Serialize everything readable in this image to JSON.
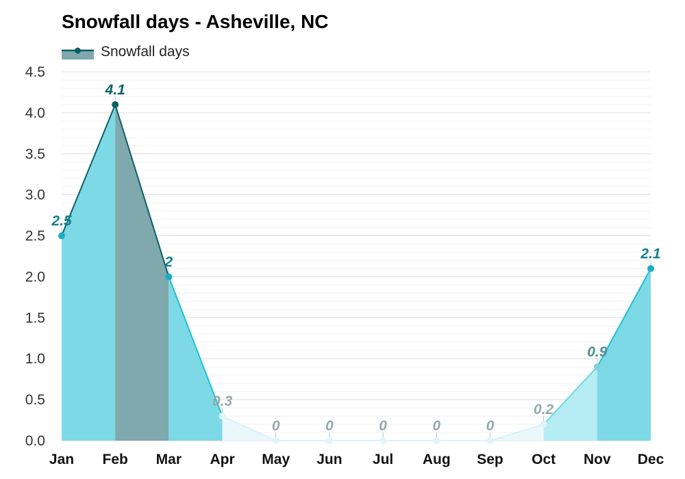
{
  "chart_data": {
    "type": "area",
    "title": "Snowfall days - Asheville, NC",
    "categories": [
      "Jan",
      "Feb",
      "Mar",
      "Apr",
      "May",
      "Jun",
      "Jul",
      "Aug",
      "Sep",
      "Oct",
      "Nov",
      "Dec"
    ],
    "series": [
      {
        "name": "Snowfall days",
        "values": [
          2.5,
          4.1,
          2,
          0.3,
          0,
          0,
          0,
          0,
          0,
          0.2,
          0.9,
          2.1
        ]
      }
    ],
    "data_labels": [
      "2.5",
      "4.1",
      "2",
      "0.3",
      "0",
      "0",
      "0",
      "0",
      "0",
      "0.2",
      "0.9",
      "2.1"
    ],
    "y_ticks": [
      "0.0",
      "0.5",
      "1.0",
      "1.5",
      "2.0",
      "2.5",
      "3.0",
      "3.5",
      "4.0",
      "4.5"
    ],
    "ylim": [
      0,
      4.5
    ],
    "xlabel": "",
    "ylabel": "",
    "grid": true,
    "legend_position": "top-left",
    "colors": {
      "legend_fill": "#7fa9ad",
      "legend_line": "#0d5f66",
      "grid": "#e3e3e3"
    }
  }
}
